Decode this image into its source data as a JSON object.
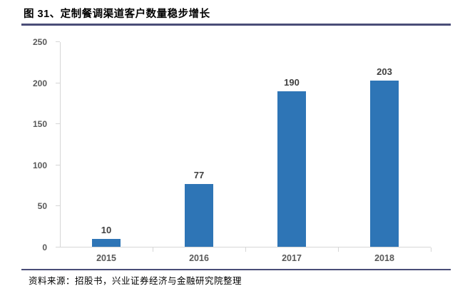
{
  "figure": {
    "title": "图 31、定制餐调渠道客户数量稳步增长",
    "source": "资料来源：招股书，兴业证券经济与金融研究院整理"
  },
  "colors": {
    "bar": "#2E75B6",
    "rule": "#4A4E78",
    "axis_line": "#D6D6D6",
    "axis_label": "#595959",
    "data_label": "#404040",
    "title": "#000000"
  },
  "chart_data": {
    "type": "bar",
    "title": "图 31、定制餐调渠道客户数量稳步增长",
    "categories": [
      "2015",
      "2016",
      "2017",
      "2018"
    ],
    "values": [
      10,
      77,
      190,
      203
    ],
    "xlabel": "",
    "ylabel": "",
    "ylim": [
      0,
      250
    ],
    "yticks": [
      0,
      50,
      100,
      150,
      200,
      250
    ],
    "grid": false,
    "legend": "none",
    "data_labels": true,
    "bar_color": "#2E75B6"
  }
}
